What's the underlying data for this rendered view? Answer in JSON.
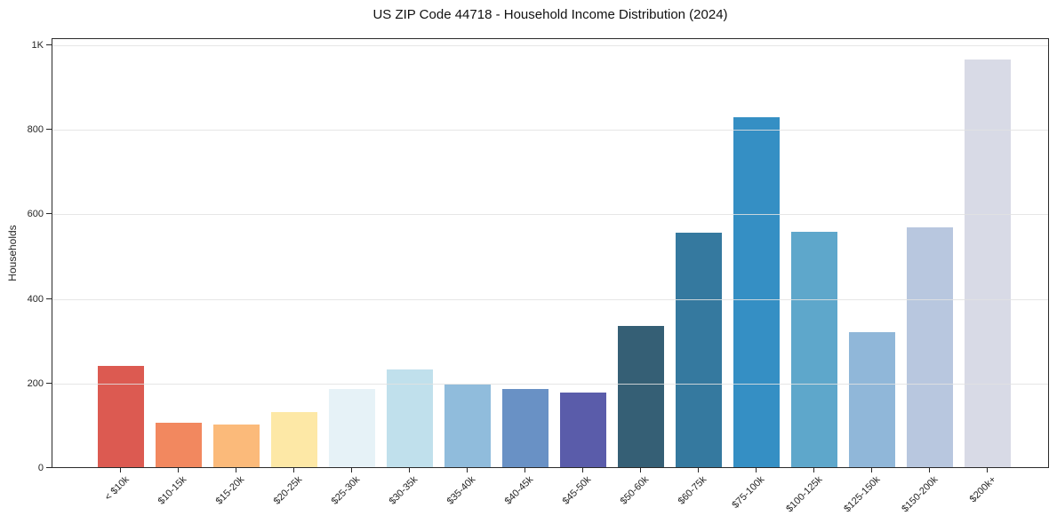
{
  "chart_data": {
    "type": "bar",
    "title": "US ZIP Code 44718 - Household Income Distribution (2024)",
    "xlabel": "",
    "ylabel": "Households",
    "categories": [
      "< $10k",
      "$10-15k",
      "$15-20k",
      "$20-25k",
      "$25-30k",
      "$30-35k",
      "$35-40k",
      "$40-45k",
      "$45-50k",
      "$50-60k",
      "$60-75k",
      "$75-100k",
      "$100-125k",
      "$125-150k",
      "$150-200k",
      "$200k+"
    ],
    "values": [
      240,
      105,
      100,
      130,
      185,
      232,
      196,
      185,
      177,
      334,
      555,
      828,
      557,
      320,
      568,
      965
    ],
    "bar_colors": [
      "#dc5a51",
      "#f2885f",
      "#fbba7a",
      "#fde8a6",
      "#e6f2f7",
      "#c0e0ec",
      "#90bcdc",
      "#6991c5",
      "#5a5caa",
      "#355f75",
      "#35799f",
      "#358fc4",
      "#5ea7cb",
      "#90b7d9",
      "#b8c7df",
      "#d8dae6"
    ],
    "yticks": [
      {
        "value": 0,
        "label": "0"
      },
      {
        "value": 200,
        "label": "200"
      },
      {
        "value": 400,
        "label": "400"
      },
      {
        "value": 600,
        "label": "600"
      },
      {
        "value": 800,
        "label": "800"
      },
      {
        "value": 1000,
        "label": "1K"
      }
    ],
    "ylim": [
      0,
      1016
    ],
    "grid": "horizontal",
    "legend": "none"
  }
}
